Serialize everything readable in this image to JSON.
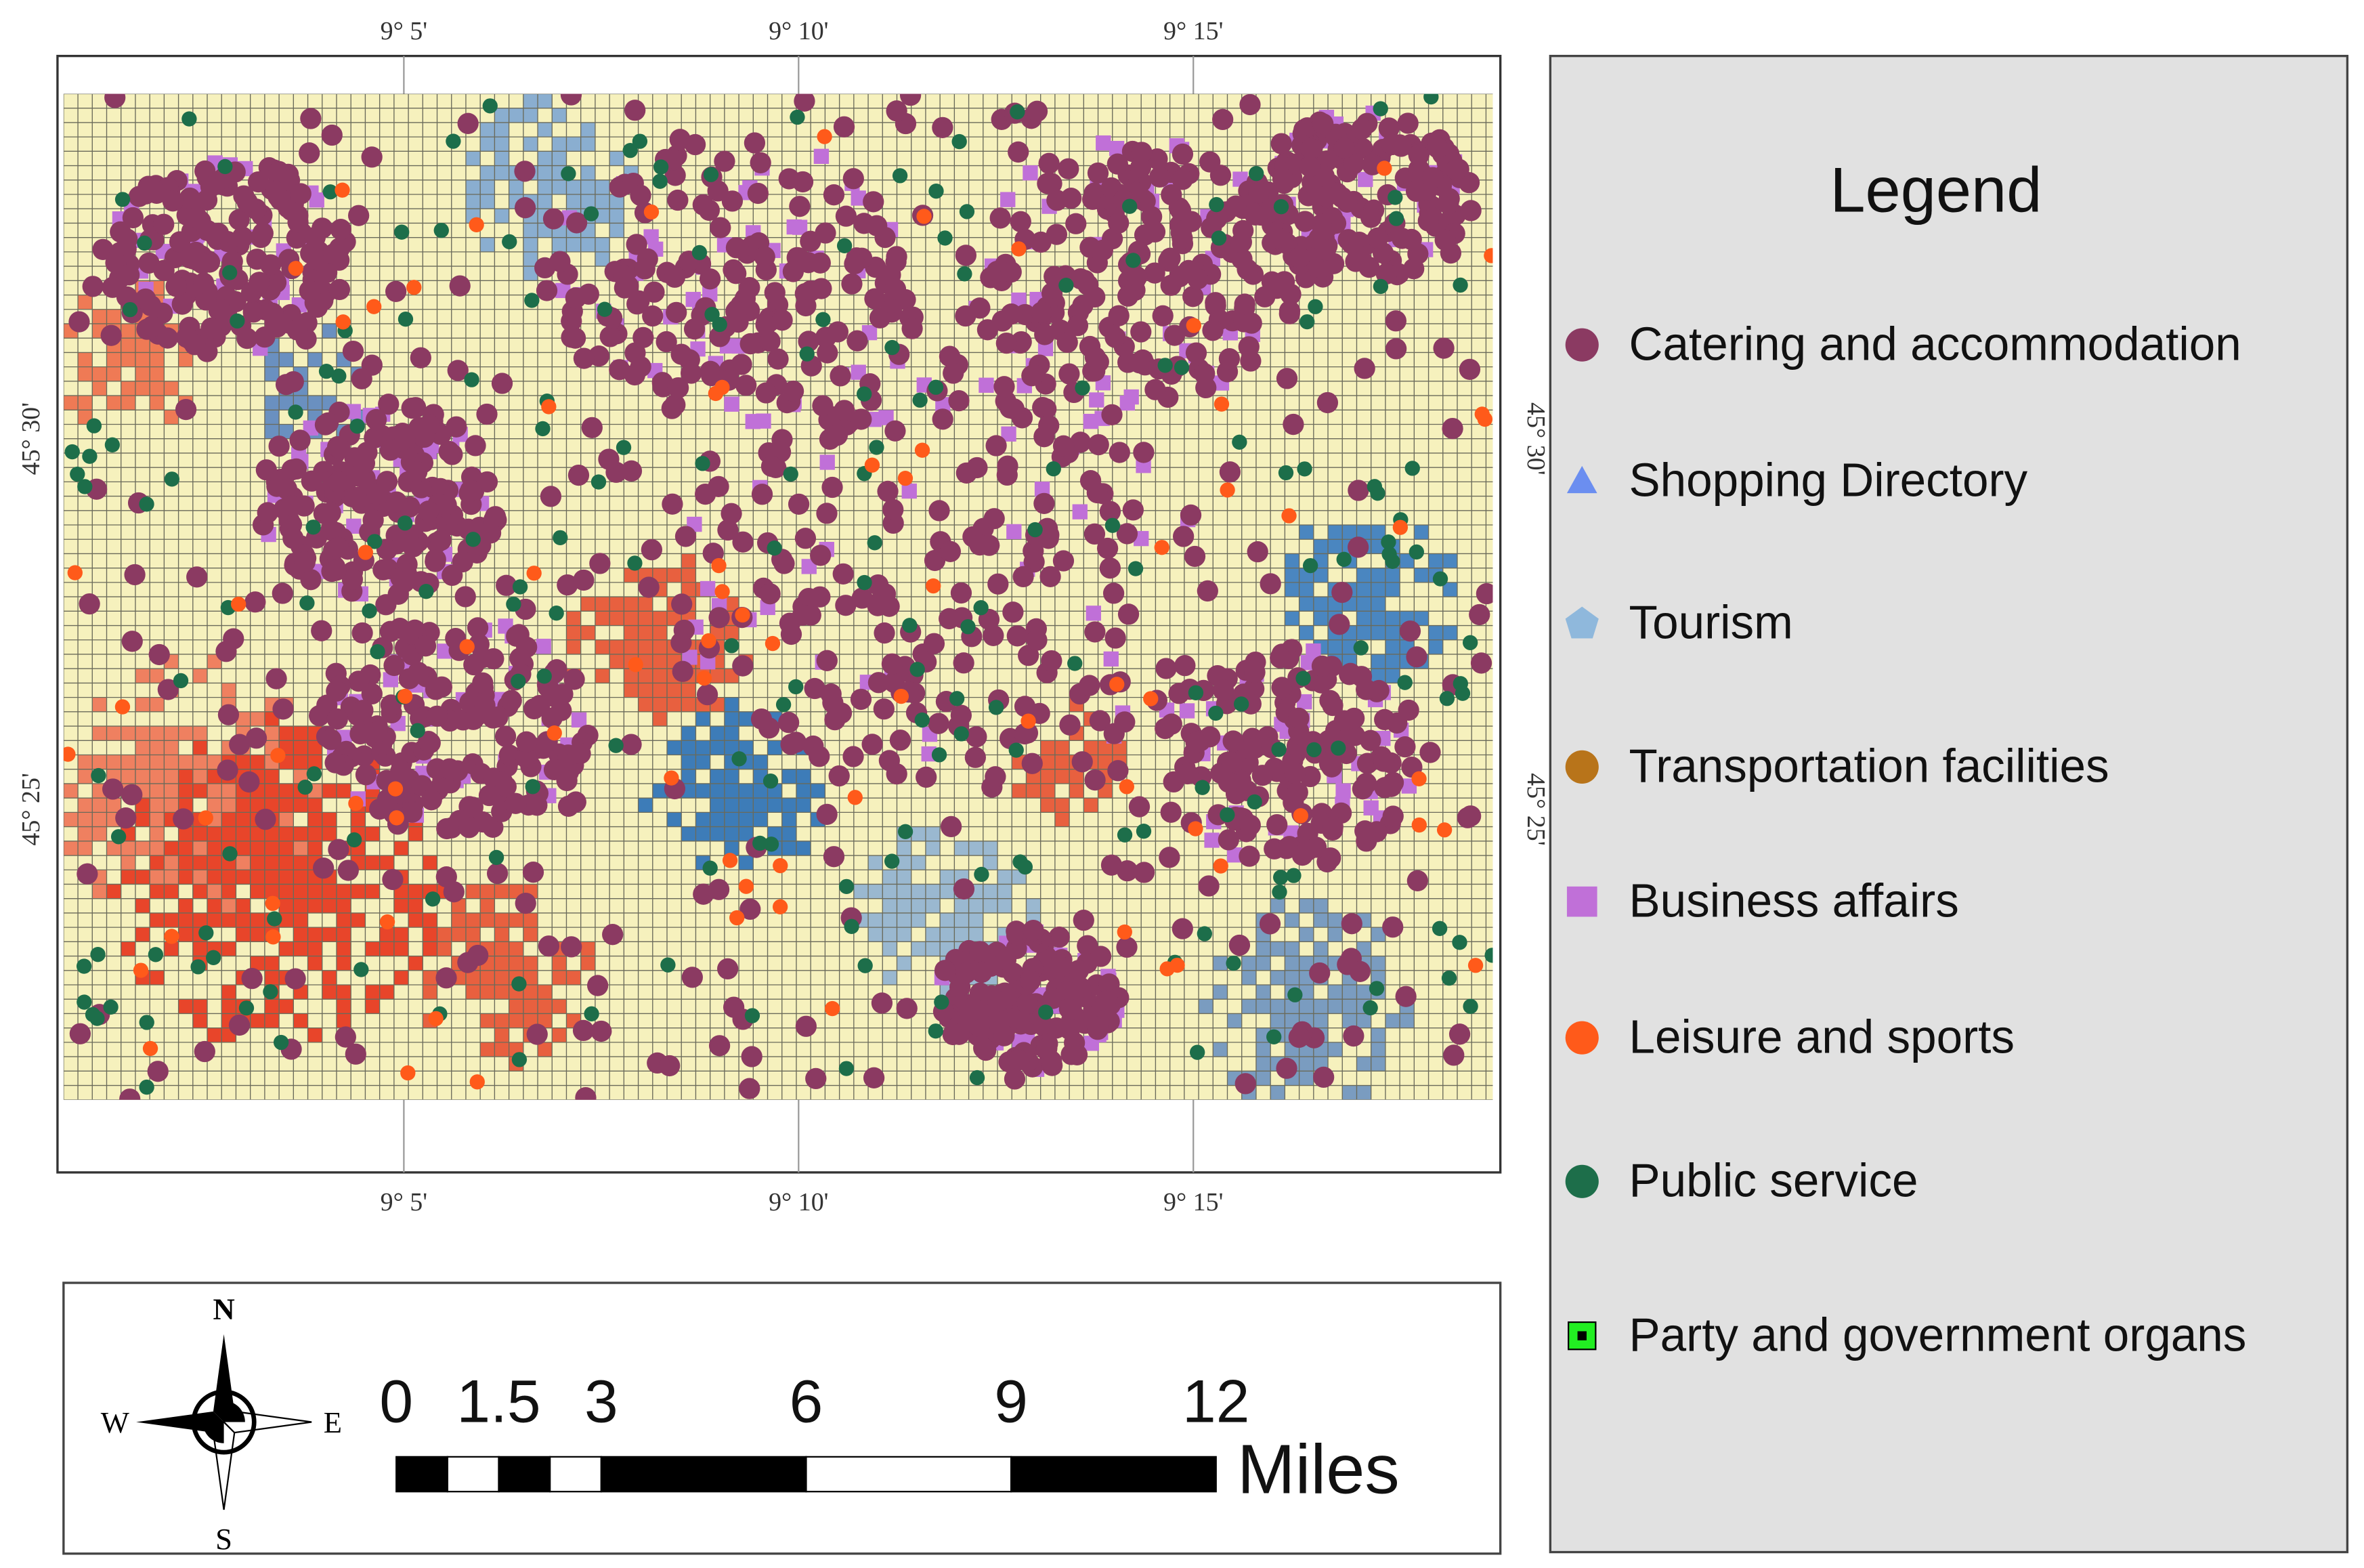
{
  "map": {
    "coordinates": {
      "longitude": [
        "9° 5'",
        "9° 10'",
        "9° 15'"
      ],
      "latitude": [
        "45° 30'",
        "45° 25'"
      ]
    }
  },
  "legend": {
    "title": "Legend",
    "items": [
      "Catering and accommodation",
      "Shopping Directory",
      "Tourism",
      "Transportation facilities",
      "Business affairs",
      "Leisure and sports",
      "Public service",
      "Party and government organs"
    ]
  },
  "scale_bar": {
    "ticks": [
      0,
      1.5,
      3,
      6,
      9,
      12
    ],
    "unit": "Miles"
  },
  "compass": {
    "north": "N",
    "south": "S",
    "east": "E",
    "west": "W"
  }
}
